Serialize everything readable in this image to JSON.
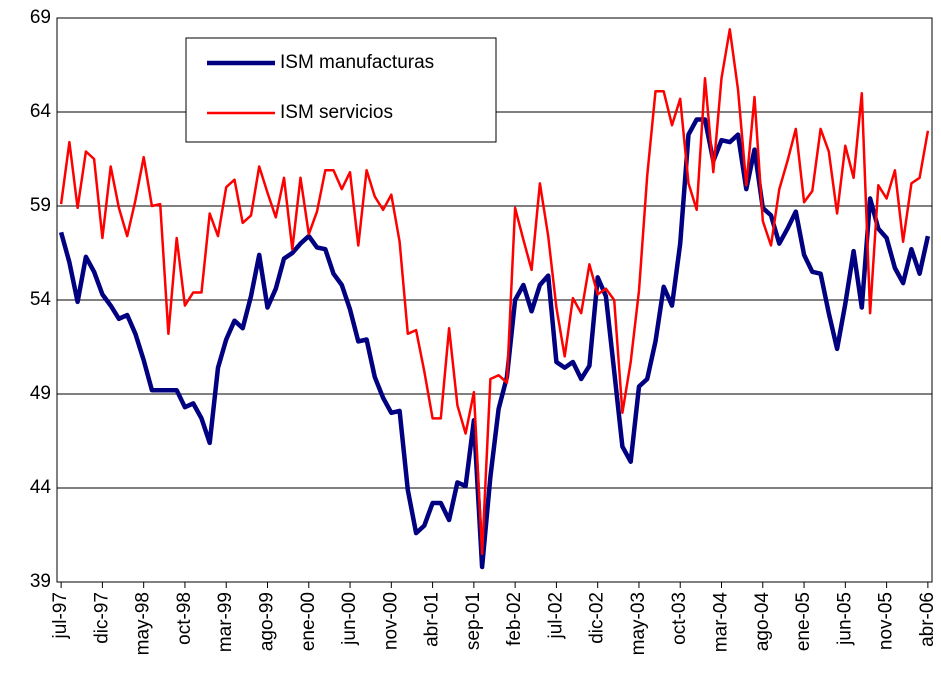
{
  "chart_data": {
    "type": "line",
    "categories": [
      "jul-97",
      null,
      null,
      null,
      null,
      "dic-97",
      null,
      null,
      null,
      null,
      "may-98",
      null,
      null,
      null,
      null,
      "oct-98",
      null,
      null,
      null,
      null,
      "mar-99",
      null,
      null,
      null,
      null,
      "ago-99",
      null,
      null,
      null,
      null,
      "ene-00",
      null,
      null,
      null,
      null,
      "jun-00",
      null,
      null,
      null,
      null,
      "nov-00",
      null,
      null,
      null,
      null,
      "abr-01",
      null,
      null,
      null,
      null,
      "sep-01",
      null,
      null,
      null,
      null,
      "feb-02",
      null,
      null,
      null,
      null,
      "jul-02",
      null,
      null,
      null,
      null,
      "dic-02",
      null,
      null,
      null,
      null,
      "may-03",
      null,
      null,
      null,
      null,
      "oct-03",
      null,
      null,
      null,
      null,
      "mar-04",
      null,
      null,
      null,
      null,
      "ago-04",
      null,
      null,
      null,
      null,
      "ene-05",
      null,
      null,
      null,
      null,
      "jun-05",
      null,
      null,
      null,
      null,
      "nov-05",
      null,
      null,
      null,
      null,
      "abr-06"
    ],
    "series": [
      {
        "name": "ISM manufacturas",
        "color": "#000080",
        "values": [
          57.6,
          56.0,
          53.9,
          56.3,
          55.5,
          54.3,
          53.7,
          53.0,
          53.2,
          52.2,
          50.8,
          49.2,
          49.2,
          49.2,
          49.2,
          48.3,
          48.5,
          47.7,
          46.4,
          50.4,
          51.9,
          52.9,
          52.5,
          54.2,
          56.4,
          53.6,
          54.6,
          56.2,
          56.5,
          57.0,
          57.4,
          56.8,
          56.7,
          55.4,
          54.8,
          53.5,
          51.8,
          51.9,
          49.9,
          48.8,
          48.0,
          48.1,
          43.9,
          41.6,
          42.0,
          43.2,
          43.2,
          42.3,
          44.3,
          44.1,
          47.6,
          39.8,
          44.6,
          48.2,
          49.9,
          54.0,
          54.8,
          53.4,
          54.8,
          55.3,
          50.7,
          50.4,
          50.7,
          49.8,
          50.5,
          55.2,
          54.2,
          50.2,
          46.2,
          45.4,
          49.4,
          49.8,
          51.8,
          54.7,
          53.7,
          57.0,
          62.8,
          63.6,
          63.6,
          61.4,
          62.5,
          62.4,
          62.8,
          59.9,
          62.0,
          58.9,
          58.5,
          57.0,
          57.8,
          58.7,
          56.4,
          55.5,
          55.4,
          53.3,
          51.4,
          53.8,
          56.6,
          53.6,
          59.4,
          57.8,
          57.3,
          55.7,
          54.9,
          56.7,
          55.4,
          57.4
        ]
      },
      {
        "name": "ISM servicios",
        "color": "#ff0000",
        "values": [
          59.1,
          62.4,
          58.9,
          61.9,
          61.5,
          57.3,
          61.1,
          58.9,
          57.4,
          59.3,
          61.6,
          59.0,
          59.1,
          52.2,
          57.3,
          53.7,
          54.4,
          54.4,
          58.6,
          57.4,
          60.0,
          60.4,
          58.1,
          58.5,
          61.1,
          59.7,
          58.4,
          60.5,
          56.7,
          60.5,
          57.5,
          58.7,
          60.9,
          60.9,
          59.9,
          60.8,
          56.9,
          60.9,
          59.5,
          58.8,
          59.6,
          57.1,
          52.2,
          52.4,
          50.2,
          47.7,
          47.7,
          52.5,
          48.4,
          46.9,
          49.1,
          40.5,
          49.8,
          50.0,
          49.6,
          58.9,
          57.2,
          55.6,
          60.2,
          57.4,
          53.6,
          51.0,
          54.1,
          53.3,
          55.9,
          54.3,
          54.6,
          54.0,
          48.0,
          50.7,
          54.5,
          60.6,
          65.1,
          65.1,
          63.3,
          64.7,
          60.2,
          58.8,
          65.8,
          60.8,
          65.8,
          68.4,
          65.2,
          60.1,
          64.8,
          58.2,
          56.9,
          59.9,
          61.4,
          63.1,
          59.2,
          59.8,
          63.1,
          61.9,
          58.6,
          62.2,
          60.5,
          65.0,
          53.3,
          60.1,
          59.4,
          60.9,
          57.1,
          60.2,
          60.5,
          63.0
        ]
      }
    ],
    "ylim": [
      39,
      69
    ],
    "yticks": [
      39,
      44,
      49,
      54,
      59,
      64,
      69
    ],
    "grid": true
  }
}
